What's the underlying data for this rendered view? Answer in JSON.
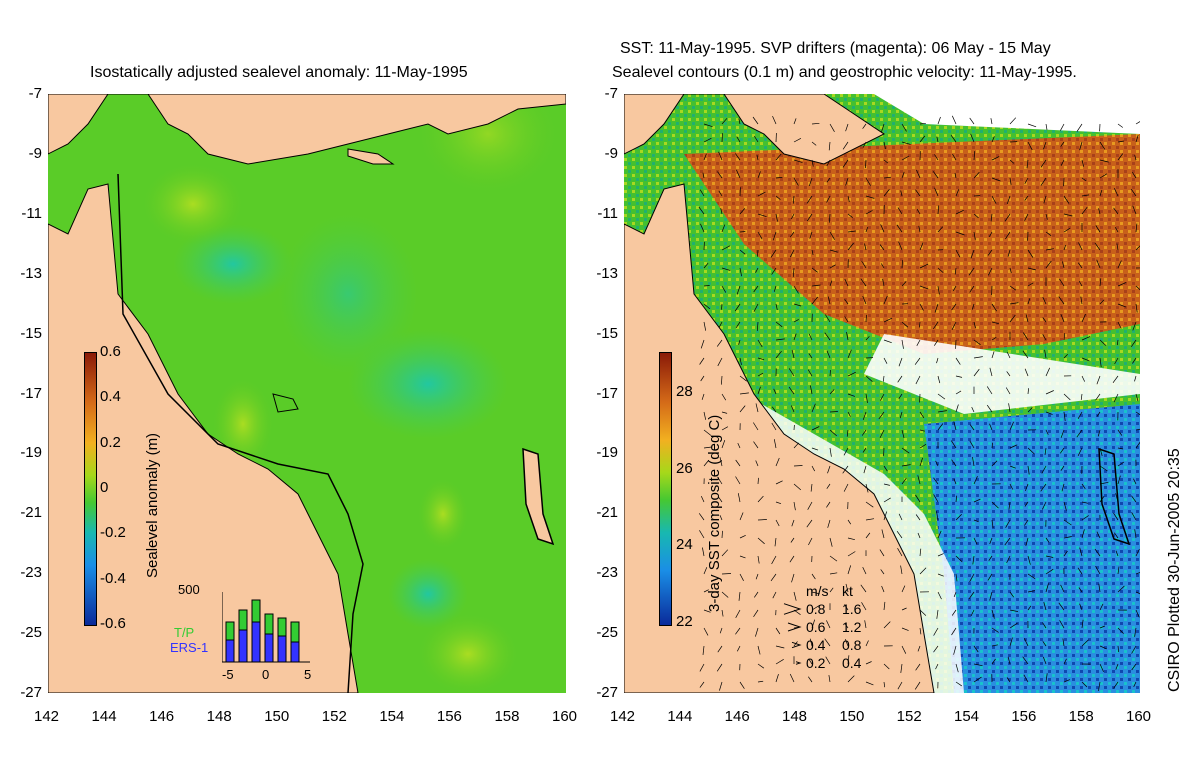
{
  "left_map": {
    "title": "Isostatically adjusted sealevel anomaly: 11-May-1995",
    "colorbar": {
      "label": "Sealevel anomaly (m)",
      "ticks": [
        "0.6",
        "0.4",
        "0.2",
        "0",
        "-0.2",
        "-0.4",
        "-0.6"
      ]
    },
    "histogram": {
      "ymax_label": "500",
      "series": [
        "T/P",
        "ERS-1"
      ],
      "series_colors": [
        "#33cc33",
        "#3333ff"
      ],
      "x_ticks": [
        "-5",
        "0",
        "5"
      ]
    }
  },
  "right_map": {
    "title_line1": "SST: 11-May-1995. SVP drifters (magenta): 06 May - 15 May",
    "title_line2": "Sealevel contours (0.1 m) and geostrophic velocity: 11-May-1995.",
    "colorbar": {
      "label": "3-day SST composite (deg C)",
      "ticks": [
        "28",
        "26",
        "24",
        "22"
      ]
    },
    "velocity_legend": {
      "headers": [
        "m/s",
        "kt"
      ],
      "rows": [
        {
          "ms": "0.8",
          "kt": "1.6"
        },
        {
          "ms": "0.6",
          "kt": "1.2"
        },
        {
          "ms": "0.4",
          "kt": "0.8"
        },
        {
          "ms": "0.2",
          "kt": "0.4"
        }
      ]
    }
  },
  "axes": {
    "y_ticks": [
      "-7",
      "-9",
      "-11",
      "-13",
      "-15",
      "-17",
      "-19",
      "-21",
      "-23",
      "-25",
      "-27"
    ],
    "x_ticks": [
      "142",
      "144",
      "146",
      "148",
      "150",
      "152",
      "154",
      "156",
      "158",
      "160"
    ]
  },
  "credit": "CSIRO Plotted 30-Jun-2005 20:35",
  "colors": {
    "land": "#f8c8a0",
    "ocean_green": "#55cc22",
    "sst_warm": "#c85a18",
    "sst_cool": "#2a78d8"
  }
}
